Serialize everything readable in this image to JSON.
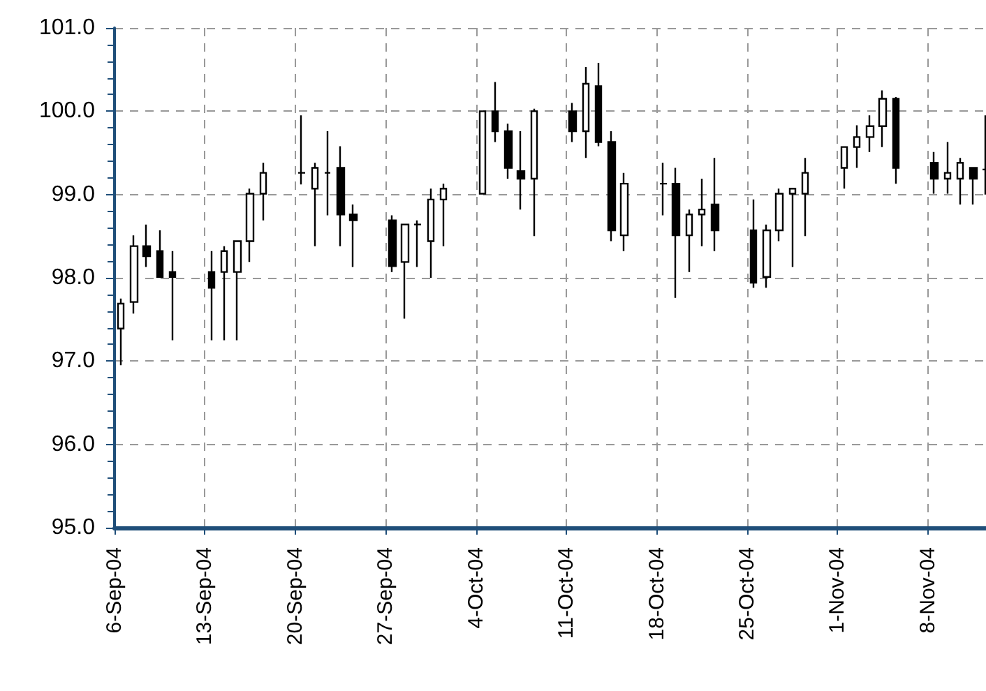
{
  "chart_data": {
    "type": "candlestick",
    "x": [
      "--09-06T12:00",
      "--09-07T12:00",
      "--09-08T12:00",
      "--09-09T12:00",
      "--09-10T12:00",
      "--09-13T12:00",
      "--09-14T12:00",
      "--09-15T12:00",
      "--09-16T12:00",
      "--09-17T12:00",
      "--09-20T12:00",
      "--09-21T12:00",
      "--09-22T12:00",
      "--09-23T12:00",
      "--09-24T12:00",
      "--09-27T12:00",
      "--09-28T12:00",
      "--09-29T12:00",
      "--09-30T12:00",
      "--10-01T12:00",
      "--10-04T12:00",
      "--10-05T12:00",
      "--10-06T12:00",
      "--10-07T12:00",
      "--10-08T12:00",
      "--10-11T12:00",
      "--10-12T12:00",
      "--10-13T12:00",
      "--10-14T12:00",
      "--10-15T12:00",
      "--10-18T12:00",
      "--10-19T12:00",
      "--10-20T12:00",
      "--10-21T12:00",
      "--10-22T12:00",
      "--10-25T12:00",
      "--10-26T12:00",
      "--10-27T12:00",
      "--10-28T12:00",
      "--10-29T12:00",
      "--11-01T12:00",
      "--11-02T12:00",
      "--11-03T12:00",
      "--11-04T12:00",
      "--11-05T12:00",
      "--11-08T12:00",
      "--11-09T12:00",
      "--11-10T12:00",
      "--11-11T12:00",
      "--11-12T12:00"
    ],
    "ohlc": [
      [
        97.39,
        97.75,
        96.95,
        97.69
      ],
      [
        97.71,
        98.51,
        97.57,
        98.38
      ],
      [
        98.38,
        98.64,
        98.13,
        98.26
      ],
      [
        98.32,
        98.57,
        98.01,
        98.01
      ],
      [
        98.07,
        98.32,
        97.25,
        98.01
      ],
      [
        98.07,
        98.32,
        97.25,
        97.88
      ],
      [
        98.07,
        98.38,
        97.25,
        98.32
      ],
      [
        98.07,
        98.44,
        97.25,
        98.44
      ],
      [
        98.44,
        99.07,
        98.19,
        99.01
      ],
      [
        99.01,
        99.38,
        98.69,
        99.26
      ],
      [
        99.26,
        99.95,
        99.12,
        99.26
      ],
      [
        99.07,
        99.38,
        98.38,
        99.32
      ],
      [
        99.26,
        99.76,
        98.75,
        99.26
      ],
      [
        99.32,
        99.58,
        98.38,
        98.76
      ],
      [
        98.76,
        98.88,
        98.13,
        98.69
      ],
      [
        98.69,
        98.75,
        98.07,
        98.14
      ],
      [
        98.19,
        98.64,
        97.51,
        98.64
      ],
      [
        98.64,
        98.69,
        98.13,
        98.64
      ],
      [
        98.44,
        99.07,
        98.0,
        98.94
      ],
      [
        98.94,
        99.13,
        98.38,
        99.07
      ],
      [
        99.01,
        100.0,
        99.01,
        100.0
      ],
      [
        100.0,
        100.35,
        99.63,
        99.76
      ],
      [
        99.76,
        99.85,
        99.19,
        99.32
      ],
      [
        99.28,
        99.76,
        98.82,
        99.19
      ],
      [
        99.19,
        100.03,
        98.5,
        100.0
      ],
      [
        100.0,
        100.1,
        99.63,
        99.76
      ],
      [
        99.76,
        100.53,
        99.44,
        100.33
      ],
      [
        100.3,
        100.58,
        99.58,
        99.63
      ],
      [
        99.63,
        99.76,
        98.44,
        98.57
      ],
      [
        98.51,
        99.26,
        98.32,
        99.13
      ],
      [
        99.13,
        99.38,
        98.75,
        99.13
      ],
      [
        99.13,
        99.32,
        97.76,
        98.51
      ],
      [
        98.51,
        98.82,
        98.07,
        98.76
      ],
      [
        98.76,
        99.19,
        98.38,
        98.82
      ],
      [
        98.88,
        99.44,
        98.32,
        98.57
      ],
      [
        98.57,
        98.94,
        97.88,
        97.94
      ],
      [
        98.01,
        98.64,
        97.88,
        98.57
      ],
      [
        98.57,
        99.07,
        98.44,
        99.01
      ],
      [
        99.01,
        99.07,
        98.13,
        99.07
      ],
      [
        99.01,
        99.44,
        98.5,
        99.26
      ],
      [
        99.32,
        99.57,
        99.07,
        99.57
      ],
      [
        99.57,
        99.83,
        99.32,
        99.69
      ],
      [
        99.69,
        99.95,
        99.51,
        99.82
      ],
      [
        99.82,
        100.25,
        99.57,
        100.15
      ],
      [
        100.15,
        100.17,
        99.13,
        99.32
      ],
      [
        99.38,
        99.51,
        99.01,
        99.19
      ],
      [
        99.19,
        99.63,
        99.01,
        99.26
      ],
      [
        99.19,
        99.44,
        98.88,
        99.38
      ],
      [
        99.32,
        99.32,
        98.88,
        99.19
      ],
      [
        99.3,
        99.95,
        99.0,
        99.3
      ]
    ],
    "xlim": [
      "--09-06",
      "--11-12T12:00"
    ],
    "xticks": [
      {
        "value": "--09-06",
        "label": "6-Sep-04"
      },
      {
        "value": "--09-13",
        "label": "13-Sep-04"
      },
      {
        "value": "--09-20",
        "label": "20-Sep-04"
      },
      {
        "value": "--09-27",
        "label": "27-Sep-04"
      },
      {
        "value": "--10-04",
        "label": "4-Oct-04"
      },
      {
        "value": "--10-11",
        "label": "11-Oct-04"
      },
      {
        "value": "--10-18",
        "label": "18-Oct-04"
      },
      {
        "value": "--10-25",
        "label": "25-Oct-04"
      },
      {
        "value": "--11-01",
        "label": "1-Nov-04"
      },
      {
        "value": "--11-08",
        "label": "8-Nov-04"
      }
    ],
    "ylim": [
      95,
      101
    ],
    "yticks": [
      {
        "value": 95,
        "label": "95.0"
      },
      {
        "value": 96,
        "label": "96.0"
      },
      {
        "value": 97,
        "label": "97.0"
      },
      {
        "value": 98,
        "label": "98.0"
      },
      {
        "value": 99,
        "label": "99.0"
      },
      {
        "value": 100,
        "label": "100.0"
      },
      {
        "value": 101,
        "label": "101.0"
      }
    ],
    "grid": true
  }
}
